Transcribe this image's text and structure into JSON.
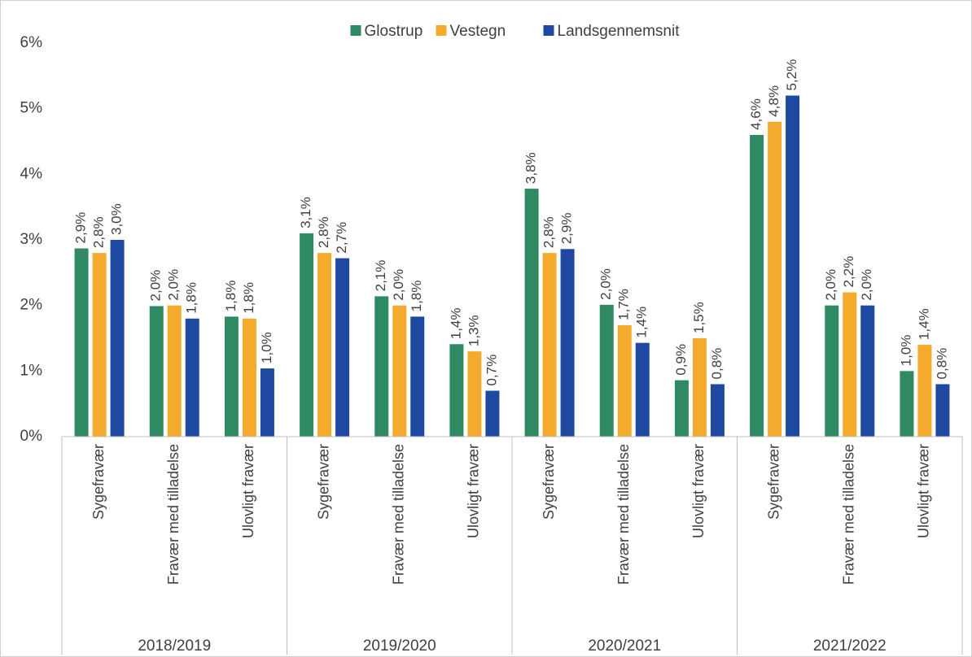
{
  "chart_data": {
    "type": "bar",
    "categories": [
      "Sygefravær",
      "Fravær med tilladelse",
      "Ulovligt fravær",
      "Sygefravær",
      "Fravær med tilladelse",
      "Ulovligt fravær",
      "Sygefravær",
      "Fravær med tilladelse",
      "Ulovligt fravær",
      "Sygefravær",
      "Fravær med tilladelse",
      "Ulovligt fravær"
    ],
    "groups": [
      "2018/2019",
      "2019/2020",
      "2020/2021",
      "2021/2022"
    ],
    "series": [
      {
        "name": "Glostrup",
        "color": "#2f8a63",
        "values": [
          2.87,
          1.99,
          1.83,
          3.1,
          2.14,
          1.41,
          3.78,
          2.01,
          0.86,
          4.6,
          2.0,
          1.0
        ],
        "value_labels": [
          "2,9%",
          "2,0%",
          "1,8%",
          "3,1%",
          "2,1%",
          "1,4%",
          "3,8%",
          "2,0%",
          "0,9%",
          "4,6%",
          "2,0%",
          "1,0%"
        ]
      },
      {
        "name": "Vestegn",
        "color": "#f4aa2c",
        "values": [
          2.8,
          2.0,
          1.8,
          2.8,
          2.0,
          1.3,
          2.8,
          1.7,
          1.5,
          4.8,
          2.2,
          1.4
        ],
        "value_labels": [
          "2,8%",
          "2,0%",
          "1,8%",
          "2,8%",
          "2,0%",
          "1,3%",
          "2,8%",
          "1,7%",
          "1,5%",
          "4,8%",
          "2,2%",
          "1,4%"
        ]
      },
      {
        "name": "Landsgennemsnit",
        "color": "#1f48a0",
        "values": [
          3.0,
          1.8,
          1.04,
          2.72,
          1.83,
          0.7,
          2.86,
          1.43,
          0.8,
          5.2,
          2.0,
          0.8
        ],
        "value_labels": [
          "3,0%",
          "1,8%",
          "1,0%",
          "2,7%",
          "1,8%",
          "0,7%",
          "2,9%",
          "1,4%",
          "0,8%",
          "5,2%",
          "2,0%",
          "0,8%"
        ]
      }
    ],
    "ylim": [
      0,
      6
    ],
    "yticks": [
      {
        "value": 0,
        "label": "0%"
      },
      {
        "value": 1,
        "label": "1%"
      },
      {
        "value": 2,
        "label": "2%"
      },
      {
        "value": 3,
        "label": "3%"
      },
      {
        "value": 4,
        "label": "4%"
      },
      {
        "value": 5,
        "label": "5%"
      },
      {
        "value": 6,
        "label": "6%"
      }
    ],
    "grid": false,
    "legend": "top"
  }
}
